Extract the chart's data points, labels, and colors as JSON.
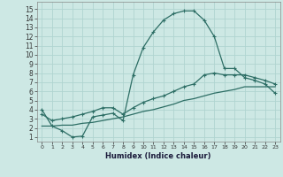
{
  "xlabel": "Humidex (Indice chaleur)",
  "bg_color": "#cde8e4",
  "grid_color": "#b0d4d0",
  "line_color": "#2d6e65",
  "x_ticks": [
    0,
    1,
    2,
    3,
    4,
    5,
    6,
    7,
    8,
    9,
    10,
    11,
    12,
    13,
    14,
    15,
    16,
    17,
    18,
    19,
    20,
    21,
    22,
    23
  ],
  "y_ticks": [
    1,
    2,
    3,
    4,
    5,
    6,
    7,
    8,
    9,
    10,
    11,
    12,
    13,
    14,
    15
  ],
  "ylim": [
    0.5,
    15.8
  ],
  "xlim": [
    -0.5,
    23.5
  ],
  "line1_x": [
    0,
    1,
    2,
    3,
    4,
    5,
    6,
    7,
    8,
    9,
    10,
    11,
    12,
    13,
    14,
    15,
    16,
    17,
    18,
    19,
    20,
    21,
    22,
    23
  ],
  "line1_y": [
    4.0,
    2.2,
    1.7,
    1.0,
    1.1,
    3.2,
    3.4,
    3.6,
    2.8,
    7.8,
    10.8,
    12.5,
    13.8,
    14.5,
    14.8,
    14.8,
    13.8,
    12.0,
    8.5,
    8.5,
    7.5,
    7.2,
    6.8,
    5.8
  ],
  "line2_x": [
    0,
    1,
    2,
    3,
    4,
    5,
    6,
    7,
    8,
    9,
    10,
    11,
    12,
    13,
    14,
    15,
    16,
    17,
    18,
    19,
    20,
    21,
    22,
    23
  ],
  "line2_y": [
    3.5,
    2.8,
    3.0,
    3.2,
    3.5,
    3.8,
    4.2,
    4.2,
    3.5,
    4.2,
    4.8,
    5.2,
    5.5,
    6.0,
    6.5,
    6.8,
    7.8,
    8.0,
    7.8,
    7.8,
    7.8,
    7.5,
    7.2,
    6.8
  ],
  "line3_x": [
    0,
    1,
    2,
    3,
    4,
    5,
    6,
    7,
    8,
    9,
    10,
    11,
    12,
    13,
    14,
    15,
    16,
    17,
    18,
    19,
    20,
    21,
    22,
    23
  ],
  "line3_y": [
    2.2,
    2.2,
    2.3,
    2.3,
    2.5,
    2.6,
    2.8,
    3.0,
    3.2,
    3.5,
    3.8,
    4.0,
    4.3,
    4.6,
    5.0,
    5.2,
    5.5,
    5.8,
    6.0,
    6.2,
    6.5,
    6.5,
    6.5,
    6.5
  ]
}
